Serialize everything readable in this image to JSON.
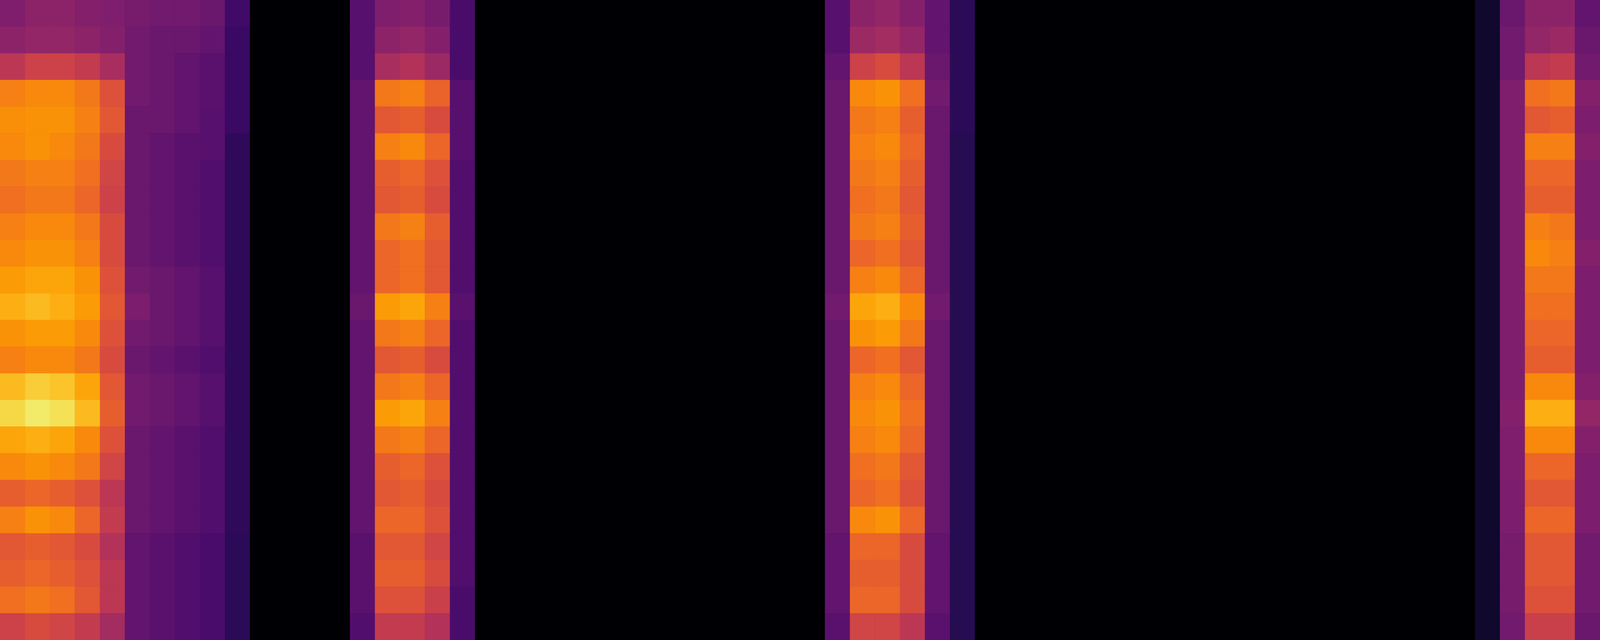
{
  "chart_data": {
    "type": "heatmap",
    "color": "inferno",
    "tick_labels": false,
    "zlim": [
      0,
      100
    ],
    "cells": [
      [
        35,
        38,
        38,
        36,
        35,
        33,
        32,
        32,
        30,
        20,
        0,
        0,
        0,
        0,
        25,
        35,
        36,
        33,
        22,
        0,
        0,
        0,
        0,
        0,
        0,
        0,
        0,
        0,
        0,
        0,
        0,
        0,
        0,
        25,
        38,
        40,
        36,
        28,
        15,
        0,
        0,
        0,
        0,
        0,
        0,
        0,
        0,
        0,
        0,
        0,
        0,
        0,
        0,
        0,
        0,
        0,
        0,
        0,
        0,
        8,
        30,
        38,
        38,
        28
      ],
      [
        38,
        40,
        40,
        38,
        36,
        32,
        30,
        30,
        28,
        18,
        0,
        0,
        0,
        0,
        25,
        38,
        40,
        36,
        22,
        0,
        0,
        0,
        0,
        0,
        0,
        0,
        0,
        0,
        0,
        0,
        0,
        0,
        0,
        25,
        42,
        44,
        40,
        28,
        15,
        0,
        0,
        0,
        0,
        0,
        0,
        0,
        0,
        0,
        0,
        0,
        0,
        0,
        0,
        0,
        0,
        0,
        0,
        0,
        0,
        8,
        32,
        40,
        42,
        30
      ],
      [
        50,
        55,
        55,
        52,
        45,
        32,
        30,
        28,
        26,
        18,
        0,
        0,
        0,
        0,
        25,
        45,
        48,
        42,
        22,
        0,
        0,
        0,
        0,
        0,
        0,
        0,
        0,
        0,
        0,
        0,
        0,
        0,
        0,
        28,
        55,
        58,
        50,
        30,
        15,
        0,
        0,
        0,
        0,
        0,
        0,
        0,
        0,
        0,
        0,
        0,
        0,
        0,
        0,
        0,
        0,
        0,
        0,
        0,
        0,
        8,
        32,
        50,
        52,
        32
      ],
      [
        72,
        74,
        74,
        70,
        60,
        32,
        30,
        28,
        26,
        18,
        0,
        0,
        0,
        0,
        28,
        70,
        72,
        65,
        25,
        0,
        0,
        0,
        0,
        0,
        0,
        0,
        0,
        0,
        0,
        0,
        0,
        0,
        0,
        30,
        74,
        76,
        68,
        32,
        15,
        0,
        0,
        0,
        0,
        0,
        0,
        0,
        0,
        0,
        0,
        0,
        0,
        0,
        0,
        0,
        0,
        0,
        0,
        0,
        0,
        8,
        35,
        68,
        70,
        36
      ],
      [
        75,
        76,
        76,
        72,
        62,
        30,
        30,
        28,
        25,
        18,
        0,
        0,
        0,
        0,
        28,
        62,
        64,
        58,
        25,
        0,
        0,
        0,
        0,
        0,
        0,
        0,
        0,
        0,
        0,
        0,
        0,
        0,
        0,
        30,
        70,
        72,
        64,
        30,
        15,
        0,
        0,
        0,
        0,
        0,
        0,
        0,
        0,
        0,
        0,
        0,
        0,
        0,
        0,
        0,
        0,
        0,
        0,
        0,
        0,
        8,
        35,
        62,
        64,
        34
      ],
      [
        74,
        76,
        74,
        70,
        58,
        30,
        28,
        26,
        25,
        16,
        0,
        0,
        0,
        0,
        28,
        72,
        74,
        66,
        25,
        0,
        0,
        0,
        0,
        0,
        0,
        0,
        0,
        0,
        0,
        0,
        0,
        0,
        0,
        30,
        72,
        74,
        66,
        30,
        14,
        0,
        0,
        0,
        0,
        0,
        0,
        0,
        0,
        0,
        0,
        0,
        0,
        0,
        0,
        0,
        0,
        0,
        0,
        0,
        0,
        8,
        35,
        72,
        72,
        36
      ],
      [
        70,
        72,
        72,
        68,
        56,
        30,
        28,
        26,
        24,
        16,
        0,
        0,
        0,
        0,
        28,
        64,
        66,
        60,
        24,
        0,
        0,
        0,
        0,
        0,
        0,
        0,
        0,
        0,
        0,
        0,
        0,
        0,
        0,
        30,
        70,
        72,
        64,
        30,
        14,
        0,
        0,
        0,
        0,
        0,
        0,
        0,
        0,
        0,
        0,
        0,
        0,
        0,
        0,
        0,
        0,
        0,
        0,
        0,
        0,
        8,
        35,
        66,
        66,
        34
      ],
      [
        68,
        70,
        70,
        66,
        55,
        30,
        28,
        26,
        24,
        16,
        0,
        0,
        0,
        0,
        28,
        62,
        64,
        58,
        24,
        0,
        0,
        0,
        0,
        0,
        0,
        0,
        0,
        0,
        0,
        0,
        0,
        0,
        0,
        30,
        68,
        70,
        62,
        30,
        14,
        0,
        0,
        0,
        0,
        0,
        0,
        0,
        0,
        0,
        0,
        0,
        0,
        0,
        0,
        0,
        0,
        0,
        0,
        0,
        0,
        8,
        35,
        64,
        64,
        34
      ],
      [
        72,
        74,
        74,
        70,
        58,
        30,
        28,
        26,
        24,
        16,
        0,
        0,
        0,
        0,
        28,
        70,
        72,
        64,
        24,
        0,
        0,
        0,
        0,
        0,
        0,
        0,
        0,
        0,
        0,
        0,
        0,
        0,
        0,
        30,
        70,
        72,
        64,
        30,
        14,
        0,
        0,
        0,
        0,
        0,
        0,
        0,
        0,
        0,
        0,
        0,
        0,
        0,
        0,
        0,
        0,
        0,
        0,
        0,
        0,
        8,
        35,
        72,
        70,
        34
      ],
      [
        74,
        76,
        76,
        72,
        58,
        30,
        28,
        26,
        24,
        16,
        0,
        0,
        0,
        0,
        28,
        66,
        68,
        62,
        24,
        0,
        0,
        0,
        0,
        0,
        0,
        0,
        0,
        0,
        0,
        0,
        0,
        0,
        0,
        30,
        66,
        68,
        62,
        30,
        14,
        0,
        0,
        0,
        0,
        0,
        0,
        0,
        0,
        0,
        0,
        0,
        0,
        0,
        0,
        0,
        0,
        0,
        0,
        0,
        0,
        8,
        35,
        74,
        72,
        36
      ],
      [
        78,
        80,
        80,
        76,
        60,
        32,
        30,
        28,
        25,
        16,
        0,
        0,
        0,
        0,
        28,
        66,
        68,
        62,
        24,
        0,
        0,
        0,
        0,
        0,
        0,
        0,
        0,
        0,
        0,
        0,
        0,
        0,
        0,
        30,
        72,
        74,
        66,
        30,
        14,
        0,
        0,
        0,
        0,
        0,
        0,
        0,
        0,
        0,
        0,
        0,
        0,
        0,
        0,
        0,
        0,
        0,
        0,
        0,
        0,
        8,
        35,
        70,
        70,
        34
      ],
      [
        82,
        84,
        82,
        78,
        62,
        34,
        30,
        28,
        25,
        16,
        0,
        0,
        0,
        0,
        30,
        78,
        80,
        72,
        26,
        0,
        0,
        0,
        0,
        0,
        0,
        0,
        0,
        0,
        0,
        0,
        0,
        0,
        0,
        32,
        80,
        82,
        74,
        32,
        14,
        0,
        0,
        0,
        0,
        0,
        0,
        0,
        0,
        0,
        0,
        0,
        0,
        0,
        0,
        0,
        0,
        0,
        0,
        0,
        0,
        8,
        35,
        68,
        68,
        34
      ],
      [
        76,
        78,
        78,
        74,
        60,
        32,
        30,
        28,
        25,
        16,
        0,
        0,
        0,
        0,
        28,
        70,
        72,
        66,
        24,
        0,
        0,
        0,
        0,
        0,
        0,
        0,
        0,
        0,
        0,
        0,
        0,
        0,
        0,
        30,
        76,
        78,
        70,
        30,
        14,
        0,
        0,
        0,
        0,
        0,
        0,
        0,
        0,
        0,
        0,
        0,
        0,
        0,
        0,
        0,
        0,
        0,
        0,
        0,
        0,
        8,
        35,
        66,
        66,
        34
      ],
      [
        72,
        74,
        74,
        70,
        58,
        30,
        28,
        26,
        24,
        16,
        0,
        0,
        0,
        0,
        28,
        62,
        64,
        58,
        24,
        0,
        0,
        0,
        0,
        0,
        0,
        0,
        0,
        0,
        0,
        0,
        0,
        0,
        0,
        30,
        66,
        68,
        62,
        30,
        14,
        0,
        0,
        0,
        0,
        0,
        0,
        0,
        0,
        0,
        0,
        0,
        0,
        0,
        0,
        0,
        0,
        0,
        0,
        0,
        0,
        8,
        35,
        64,
        64,
        34
      ],
      [
        84,
        88,
        86,
        80,
        62,
        32,
        30,
        28,
        25,
        16,
        0,
        0,
        0,
        0,
        28,
        70,
        72,
        66,
        24,
        0,
        0,
        0,
        0,
        0,
        0,
        0,
        0,
        0,
        0,
        0,
        0,
        0,
        0,
        30,
        72,
        74,
        66,
        30,
        14,
        0,
        0,
        0,
        0,
        0,
        0,
        0,
        0,
        0,
        0,
        0,
        0,
        0,
        0,
        0,
        0,
        0,
        0,
        0,
        0,
        8,
        35,
        74,
        74,
        36
      ],
      [
        90,
        94,
        92,
        84,
        64,
        32,
        30,
        28,
        25,
        16,
        0,
        0,
        0,
        0,
        28,
        78,
        80,
        72,
        24,
        0,
        0,
        0,
        0,
        0,
        0,
        0,
        0,
        0,
        0,
        0,
        0,
        0,
        0,
        30,
        74,
        76,
        68,
        30,
        14,
        0,
        0,
        0,
        0,
        0,
        0,
        0,
        0,
        0,
        0,
        0,
        0,
        0,
        0,
        0,
        0,
        0,
        0,
        0,
        0,
        8,
        36,
        82,
        82,
        40
      ],
      [
        80,
        82,
        80,
        74,
        60,
        30,
        28,
        26,
        24,
        16,
        0,
        0,
        0,
        0,
        28,
        70,
        72,
        66,
        24,
        0,
        0,
        0,
        0,
        0,
        0,
        0,
        0,
        0,
        0,
        0,
        0,
        0,
        0,
        30,
        72,
        74,
        66,
        30,
        14,
        0,
        0,
        0,
        0,
        0,
        0,
        0,
        0,
        0,
        0,
        0,
        0,
        0,
        0,
        0,
        0,
        0,
        0,
        0,
        0,
        8,
        35,
        74,
        74,
        36
      ],
      [
        74,
        76,
        74,
        70,
        56,
        30,
        28,
        26,
        24,
        16,
        0,
        0,
        0,
        0,
        28,
        64,
        66,
        60,
        24,
        0,
        0,
        0,
        0,
        0,
        0,
        0,
        0,
        0,
        0,
        0,
        0,
        0,
        0,
        30,
        68,
        70,
        62,
        30,
        14,
        0,
        0,
        0,
        0,
        0,
        0,
        0,
        0,
        0,
        0,
        0,
        0,
        0,
        0,
        0,
        0,
        0,
        0,
        0,
        0,
        8,
        35,
        66,
        66,
        34
      ],
      [
        64,
        66,
        64,
        60,
        50,
        30,
        28,
        26,
        24,
        16,
        0,
        0,
        0,
        0,
        28,
        62,
        64,
        58,
        24,
        0,
        0,
        0,
        0,
        0,
        0,
        0,
        0,
        0,
        0,
        0,
        0,
        0,
        0,
        30,
        66,
        68,
        60,
        30,
        14,
        0,
        0,
        0,
        0,
        0,
        0,
        0,
        0,
        0,
        0,
        0,
        0,
        0,
        0,
        0,
        0,
        0,
        0,
        0,
        0,
        8,
        34,
        62,
        62,
        34
      ],
      [
        72,
        76,
        74,
        66,
        52,
        30,
        28,
        26,
        24,
        16,
        0,
        0,
        0,
        0,
        28,
        66,
        66,
        60,
        24,
        0,
        0,
        0,
        0,
        0,
        0,
        0,
        0,
        0,
        0,
        0,
        0,
        0,
        0,
        30,
        74,
        76,
        66,
        30,
        14,
        0,
        0,
        0,
        0,
        0,
        0,
        0,
        0,
        0,
        0,
        0,
        0,
        0,
        0,
        0,
        0,
        0,
        0,
        0,
        0,
        8,
        34,
        66,
        66,
        34
      ],
      [
        62,
        64,
        62,
        58,
        48,
        28,
        26,
        24,
        22,
        15,
        0,
        0,
        0,
        0,
        26,
        62,
        62,
        56,
        24,
        0,
        0,
        0,
        0,
        0,
        0,
        0,
        0,
        0,
        0,
        0,
        0,
        0,
        0,
        28,
        66,
        66,
        58,
        28,
        14,
        0,
        0,
        0,
        0,
        0,
        0,
        0,
        0,
        0,
        0,
        0,
        0,
        0,
        0,
        0,
        0,
        0,
        0,
        0,
        0,
        8,
        33,
        62,
        62,
        32
      ],
      [
        64,
        66,
        64,
        60,
        50,
        28,
        26,
        24,
        22,
        15,
        0,
        0,
        0,
        0,
        26,
        64,
        64,
        58,
        24,
        0,
        0,
        0,
        0,
        0,
        0,
        0,
        0,
        0,
        0,
        0,
        0,
        0,
        0,
        28,
        64,
        64,
        58,
        28,
        14,
        0,
        0,
        0,
        0,
        0,
        0,
        0,
        0,
        0,
        0,
        0,
        0,
        0,
        0,
        0,
        0,
        0,
        0,
        0,
        0,
        8,
        33,
        62,
        62,
        32
      ],
      [
        68,
        70,
        68,
        62,
        50,
        28,
        26,
        24,
        22,
        15,
        0,
        0,
        0,
        0,
        26,
        60,
        60,
        54,
        22,
        0,
        0,
        0,
        0,
        0,
        0,
        0,
        0,
        0,
        0,
        0,
        0,
        0,
        0,
        28,
        66,
        66,
        58,
        28,
        14,
        0,
        0,
        0,
        0,
        0,
        0,
        0,
        0,
        0,
        0,
        0,
        0,
        0,
        0,
        0,
        0,
        0,
        0,
        0,
        0,
        8,
        33,
        60,
        60,
        32
      ],
      [
        55,
        58,
        56,
        52,
        44,
        28,
        26,
        24,
        22,
        15,
        0,
        0,
        0,
        0,
        24,
        52,
        52,
        48,
        22,
        0,
        0,
        0,
        0,
        0,
        0,
        0,
        0,
        0,
        0,
        0,
        0,
        0,
        0,
        26,
        56,
        56,
        50,
        26,
        14,
        0,
        0,
        0,
        0,
        0,
        0,
        0,
        0,
        0,
        0,
        0,
        0,
        0,
        0,
        0,
        0,
        0,
        0,
        0,
        0,
        8,
        32,
        54,
        54,
        30
      ]
    ]
  }
}
